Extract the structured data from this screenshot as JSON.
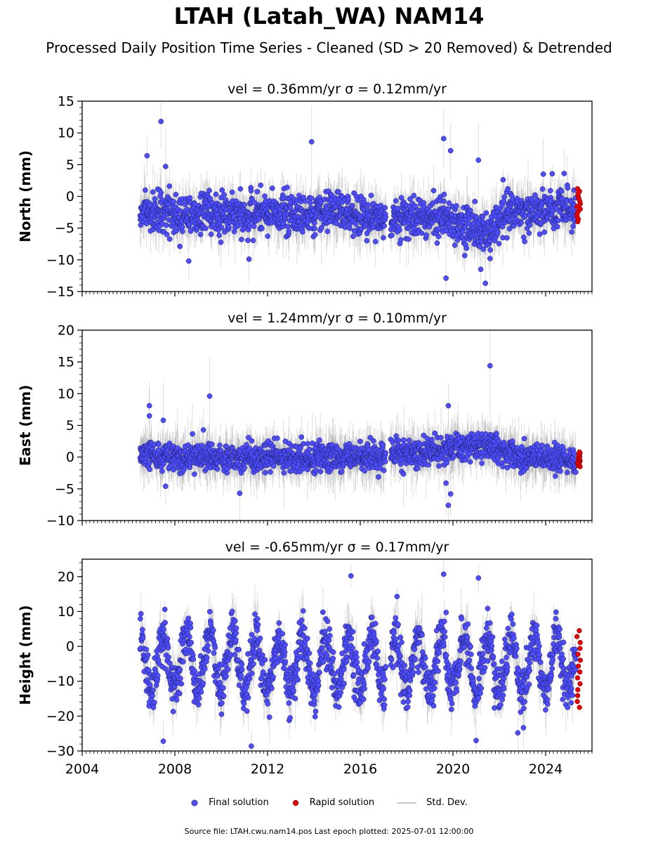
{
  "title": "LTAH (Latah_WA) NAM14",
  "subtitle": "Processed Daily Position Time Series - Cleaned (SD > 20 Removed) & Detrended",
  "legend": {
    "final_label": "Final solution",
    "rapid_label": "Rapid solution",
    "std_label": "Std. Dev."
  },
  "footer": "Source file: LTAH.cwu.nam14.pos  Last epoch plotted: 2025-07-01 12:00:00",
  "colors": {
    "final": "#4d4dff",
    "final_edge": "#1a1a55",
    "rapid": "#ee0000",
    "std_dev": "#b0b0b0",
    "axis": "#000000"
  },
  "chart_data": [
    {
      "type": "scatter",
      "panel": "north",
      "title": "vel = 0.36mm/yr   σ = 0.12mm/yr",
      "ylabel": "North (mm)",
      "xlabel": "",
      "xlim": [
        2004,
        2026
      ],
      "ylim": [
        -15,
        15
      ],
      "yticks": [
        -15,
        -10,
        -5,
        0,
        5,
        10,
        15
      ],
      "xticks": [
        2004,
        2008,
        2012,
        2016,
        2020,
        2024
      ],
      "x_ticklabels_shown": false,
      "velocity_mm_per_yr": 0.36,
      "sigma_mm_per_yr": 0.12,
      "series": [
        {
          "name": "Final solution",
          "x_range": [
            2006.5,
            2025.3
          ],
          "gap": [
            2017.1,
            2017.3
          ],
          "typical_mean": -3,
          "typical_spread": 1.6,
          "trend_points": {
            "x": [
              2006.5,
              2011,
              2015,
              2017,
              2019.5,
              2021.5,
              2022.3,
              2025.3
            ],
            "y": [
              -2.5,
              -3,
              -2.5,
              -3.5,
              -3,
              -6,
              -2.5,
              -2
            ]
          },
          "outliers": {
            "x": [
              2007.4,
              2006.8,
              2007.6,
              2013.9,
              2019.6,
              2019.9,
              2021.1,
              2023.9,
              2024.8,
              2008.6,
              2011.2,
              2019.7,
              2021.2,
              2021.4,
              2021.6
            ],
            "y": [
              11.8,
              6.4,
              4.7,
              8.6,
              9.1,
              7.2,
              5.7,
              3.5,
              3.6,
              -10.2,
              -9.9,
              -12.9,
              -11.5,
              -13.7,
              -9.8
            ]
          }
        },
        {
          "name": "Rapid solution",
          "x_range": [
            2025.35,
            2025.5
          ],
          "values_range": [
            -4,
            1.2
          ]
        }
      ]
    },
    {
      "type": "scatter",
      "panel": "east",
      "title": "vel = 1.24mm/yr   σ = 0.10mm/yr",
      "ylabel": "East (mm)",
      "xlabel": "",
      "xlim": [
        2004,
        2026
      ],
      "ylim": [
        -10,
        20
      ],
      "yticks": [
        -10,
        -5,
        0,
        5,
        10,
        15,
        20
      ],
      "xticks": [
        2004,
        2008,
        2012,
        2016,
        2020,
        2024
      ],
      "x_ticklabels_shown": false,
      "velocity_mm_per_yr": 1.24,
      "sigma_mm_per_yr": 0.1,
      "series": [
        {
          "name": "Final solution",
          "x_range": [
            2006.5,
            2025.3
          ],
          "gap": [
            2017.1,
            2017.3
          ],
          "typical_mean": 0,
          "typical_spread": 1.1,
          "trend_points": {
            "x": [
              2006.5,
              2011,
              2015,
              2017,
              2019.5,
              2021.5,
              2023,
              2025.3
            ],
            "y": [
              0.3,
              0,
              0,
              0,
              1,
              1.8,
              0,
              -0.3
            ]
          },
          "outliers": {
            "x": [
              2006.9,
              2006.9,
              2007.5,
              2009.5,
              2021.6,
              2019.8,
              2010.8,
              2019.8,
              2019.9,
              2007.6,
              2019.7
            ],
            "y": [
              8.1,
              6.5,
              5.8,
              9.6,
              14.4,
              8.1,
              -5.7,
              -7.6,
              -5.8,
              -4.6,
              -4.1
            ]
          }
        },
        {
          "name": "Rapid solution",
          "x_range": [
            2025.35,
            2025.5
          ],
          "values_range": [
            -1.5,
            0.8
          ]
        }
      ]
    },
    {
      "type": "scatter",
      "panel": "height",
      "title": "vel = -0.65mm/yr   σ = 0.17mm/yr",
      "ylabel": "Height (mm)",
      "xlabel": "",
      "xlim": [
        2004,
        2026
      ],
      "ylim": [
        -30,
        25
      ],
      "yticks": [
        -30,
        -20,
        -10,
        0,
        10,
        20
      ],
      "xticks": [
        2004,
        2008,
        2012,
        2016,
        2020,
        2024
      ],
      "x_ticklabels_shown": true,
      "velocity_mm_per_yr": -0.65,
      "sigma_mm_per_yr": 0.17,
      "series": [
        {
          "name": "Final solution",
          "x_range": [
            2006.5,
            2025.3
          ],
          "gap": [
            2017.1,
            2017.3
          ],
          "typical_mean": -5,
          "seasonal_amplitude": 8,
          "seasonal_peak_phase": 0.5,
          "typical_spread": 3.5,
          "outliers": {
            "x": [
              2007.5,
              2011.3,
              2015.6,
              2019.6,
              2021.0,
              2021.1,
              2022.8
            ],
            "y": [
              -27.2,
              -28.6,
              20.2,
              20.7,
              -27.0,
              19.6,
              -24.8
            ]
          }
        },
        {
          "name": "Rapid solution",
          "x_range": [
            2025.35,
            2025.5
          ],
          "values_range": [
            -17.5,
            4.5
          ]
        }
      ]
    }
  ]
}
